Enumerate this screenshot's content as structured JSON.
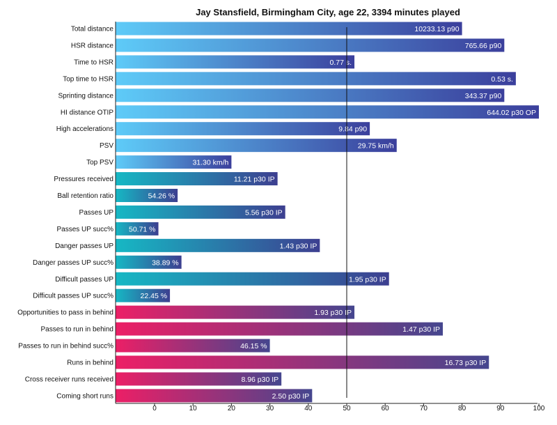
{
  "chart_data": {
    "type": "bar",
    "orientation": "horizontal",
    "title": "Jay Stansfield, Birmingham City, age 22, 3394 minutes played",
    "xlabel": "",
    "ylabel": "",
    "xlim": [
      -10,
      100
    ],
    "xticks": [
      "0",
      "10",
      "20",
      "30",
      "40",
      "50",
      "60",
      "70",
      "80",
      "90",
      "100"
    ],
    "reference_line": 50,
    "grid": false,
    "categories": [
      "Total distance",
      "HSR distance",
      "Time to HSR",
      "Top time to HSR",
      "Sprinting distance",
      "HI distance OTIP",
      "High accelerations",
      "PSV",
      "Top PSV",
      "Pressures received",
      "Ball retention ratio",
      "Passes UP",
      "Passes UP succ%",
      "Danger passes UP",
      "Danger passes UP succ%",
      "Difficult passes UP",
      "Difficult passes UP succ%",
      "Opportunities to pass in behind",
      "Passes to run in behind",
      "Passes to run in behind succ%",
      "Runs in behind",
      "Cross receiver runs received",
      "Coming short runs"
    ],
    "values": [
      80,
      91,
      52,
      94,
      91,
      100,
      56,
      63,
      20,
      32,
      6,
      34,
      1,
      43,
      7,
      61,
      4,
      52,
      75,
      30,
      87,
      33,
      41
    ],
    "labels": [
      "10233.13 p90",
      "765.66 p90",
      "0.77 s.",
      "0.53 s.",
      "343.37 p90",
      "644.02 p30 OP",
      "9.84 p90",
      "29.75 km/h",
      "31.30 km/h",
      "11.21 p30 IP",
      "54.26 %",
      "5.56 p30 IP",
      "50.71 %",
      "1.43 p30 IP",
      "38.89 %",
      "1.95 p30 IP",
      "22.45 %",
      "1.93 p30 IP",
      "1.47 p30 IP",
      "46.15 %",
      "16.73 p30 IP",
      "8.96 p30 IP",
      "2.50 p30 IP"
    ],
    "groups": [
      {
        "from": 0,
        "to": 8,
        "color_start": "#5ecbf8",
        "color_end": "#3b3f9c"
      },
      {
        "from": 9,
        "to": 16,
        "color_start": "#16b8c4",
        "color_end": "#3d3f90"
      },
      {
        "from": 17,
        "to": 22,
        "color_start": "#ec1f66",
        "color_end": "#45468e"
      }
    ]
  }
}
